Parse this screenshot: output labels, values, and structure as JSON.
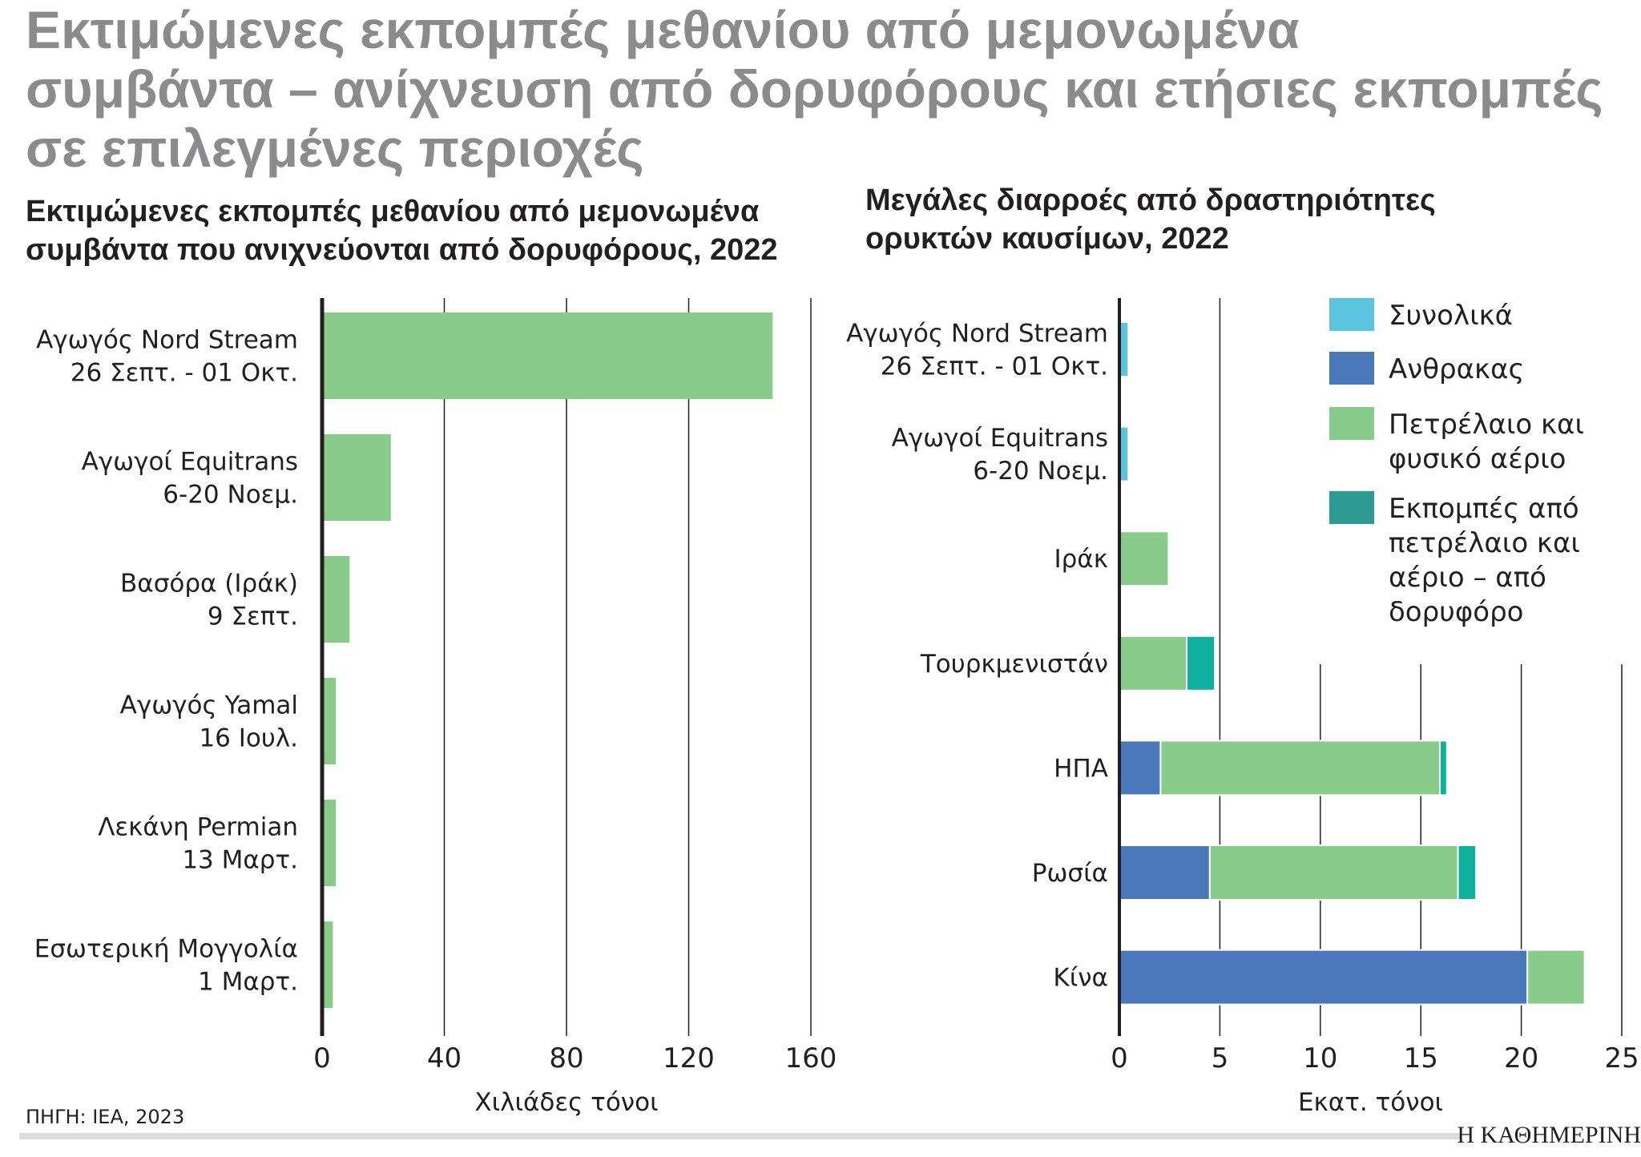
{
  "title": [
    "Εκτιμώμενες εκπομπές μεθανίου από μεμονωμένα",
    "συμβάντα – ανίχνευση από δορυφόρους και ετήσιες εκπομπές",
    "σε επιλεγμένες περιοχές"
  ],
  "source": "ΠΗΓΗ: IEA, 2023",
  "logo": "Η ΚΑΘΗΜΕΡΙΝΗ",
  "chart_data": [
    {
      "type": "bar",
      "orientation": "horizontal",
      "title": [
        "Εκτιμώμενες εκπομπές μεθανίου από μεμονωμένα",
        "συμβάντα που ανιχνεύονται από δορυφόρους, 2022"
      ],
      "categories": [
        [
          "Αγωγός Nord Stream",
          "26 Σεπτ. - 01 Οκτ."
        ],
        [
          "Αγωγοί Equitrans",
          "6-20 Νοεμ."
        ],
        [
          "Βασόρα (Ιράκ)",
          "9 Σεπτ."
        ],
        [
          "Αγωγός Yamal",
          "16 Ιουλ."
        ],
        [
          "Λεκάνη Permian",
          "13 Μαρτ."
        ],
        [
          "Εσωτερική Μογγολία",
          "1 Μαρτ."
        ]
      ],
      "values": [
        147.5,
        22.5,
        9,
        4.5,
        4.5,
        3.5
      ],
      "xlabel": "Χιλιάδες τόνοι",
      "xlim": [
        0,
        160
      ],
      "xticks": [
        "0",
        "40",
        "80",
        "120",
        "160"
      ],
      "grid": true,
      "color": "#88cb8b"
    },
    {
      "type": "bar",
      "orientation": "horizontal",
      "stacked": true,
      "title": [
        "Μεγάλες διαρροές από δραστηριότητες",
        "ορυκτών καυσίμων, 2022"
      ],
      "categories": [
        [
          "Αγωγός Nord Stream",
          "26 Σεπτ. - 01 Οκτ."
        ],
        [
          "Αγωγοί Equitrans",
          "6-20 Νοεμ."
        ],
        [
          "Ιράκ"
        ],
        [
          "Τουρκμενιστάν"
        ],
        [
          "ΗΠΑ"
        ],
        [
          "Ρωσία"
        ],
        [
          "Κίνα"
        ]
      ],
      "series": [
        {
          "name": "Συνολικά",
          "values": [
            0.45,
            0.45,
            0,
            0,
            0,
            0,
            0
          ],
          "color": "#5bc4e0"
        },
        {
          "name": "Ανθρακας",
          "values": [
            0,
            0,
            0,
            0,
            2.05,
            4.5,
            20.3
          ],
          "color": "#4a78bb"
        },
        {
          "name": "Πετρέλαιο και φυσικό αέριο",
          "values": [
            0,
            0,
            2.45,
            3.35,
            13.9,
            12.35,
            2.85
          ],
          "color": "#88cb8b"
        },
        {
          "name": "Εκπομπές από πετρέλαιο και αέριο - από δορυφόρο",
          "values": [
            0,
            0,
            0,
            1.4,
            0.35,
            0.9,
            0
          ],
          "color": "#0fb09e"
        }
      ],
      "legend_lines": [
        [
          "Συνολικά"
        ],
        [
          "Ανθρακας"
        ],
        [
          "Πετρέλαιο και",
          "φυσικό αέριο"
        ],
        [
          "Εκπομπές από",
          "πετρέλαιο και",
          "αέριο – από",
          "δορυφόρο"
        ]
      ],
      "legend_colors": [
        "#5bc4e0",
        "#4a78bb",
        "#88cb8b",
        "#2e9a94"
      ],
      "legend_position": "top-right",
      "xlabel": "Εκατ. τόνοι",
      "xlim": [
        0,
        25
      ],
      "xticks": [
        "0",
        "5",
        "10",
        "15",
        "20",
        "25"
      ],
      "grid": true
    }
  ]
}
